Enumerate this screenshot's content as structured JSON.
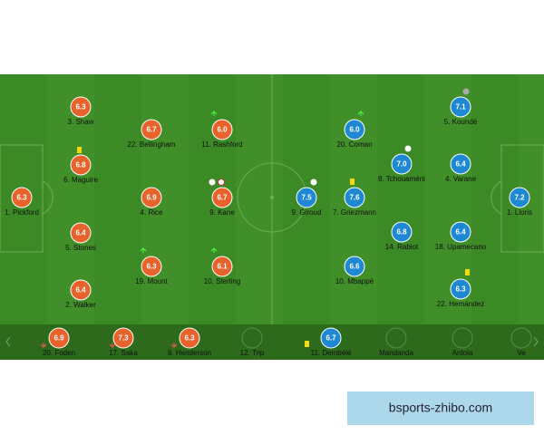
{
  "home": {
    "players": [
      {
        "rating": "6.3",
        "label": "1. Pickford"
      },
      {
        "rating": "6.3",
        "label": "3. Shaw"
      },
      {
        "rating": "6.8",
        "label": "6. Maguire"
      },
      {
        "rating": "6.4",
        "label": "5. Stones"
      },
      {
        "rating": "6.4",
        "label": "2. Walker"
      },
      {
        "rating": "6.7",
        "label": "22. Bellingham"
      },
      {
        "rating": "6.9",
        "label": "4. Rice"
      },
      {
        "rating": "6.3",
        "label": "19. Mount"
      },
      {
        "rating": "6.0",
        "label": "11. Rashford"
      },
      {
        "rating": "6.7",
        "label": "9. Kane"
      },
      {
        "rating": "6.1",
        "label": "10. Sterling"
      }
    ]
  },
  "away": {
    "players": [
      {
        "rating": "7.2",
        "label": "1. Lloris"
      },
      {
        "rating": "7.1",
        "label": "5. Koundé"
      },
      {
        "rating": "6.4",
        "label": "4. Varane"
      },
      {
        "rating": "6.4",
        "label": "18. Upamecano"
      },
      {
        "rating": "6.3",
        "label": "22. Hernández"
      },
      {
        "rating": "7.0",
        "label": "8. Tchouaméni"
      },
      {
        "rating": "6.8",
        "label": "14. Rabiot"
      },
      {
        "rating": "6.0",
        "label": "20. Coman"
      },
      {
        "rating": "7.6",
        "label": "7. Griezmann"
      },
      {
        "rating": "6.6",
        "label": "10. Mbappé"
      },
      {
        "rating": "7.5",
        "label": "9. Giroud"
      }
    ]
  },
  "bench": {
    "players": [
      {
        "rating": "6.9",
        "label": "20. Foden"
      },
      {
        "rating": "7.3",
        "label": "17. Saka"
      },
      {
        "rating": "6.3",
        "label": "8. Henderson"
      },
      {
        "label": "12. Trip"
      },
      {
        "rating": "6.7",
        "label": "11. Dembélé"
      },
      {
        "label": "Mandanda"
      },
      {
        "label": "Antola"
      },
      {
        "label": "Ve"
      }
    ]
  },
  "watermark": "bsports-zhibo.com"
}
